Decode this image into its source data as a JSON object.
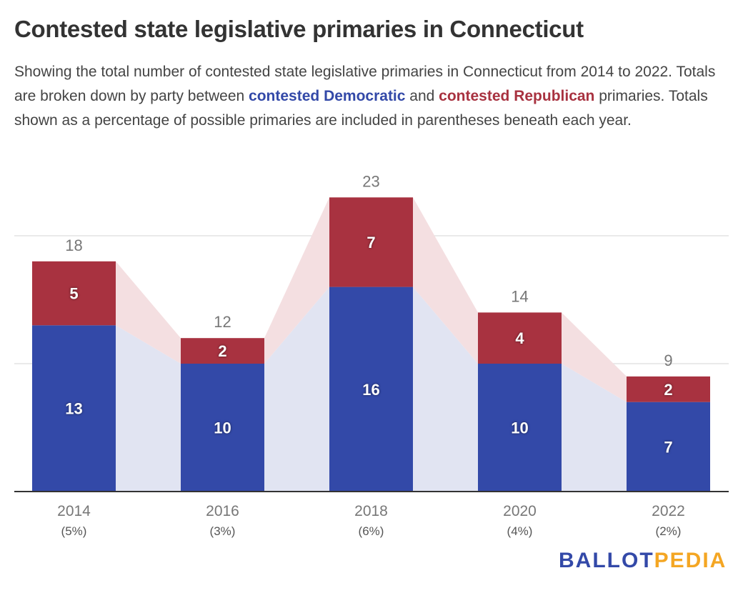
{
  "chart_data": {
    "type": "bar",
    "stacked": true,
    "title": "Contested state legislative primaries in Connecticut",
    "subtitle": {
      "part1": "Showing the total number of contested state legislative primaries in Connecticut from 2014 to 2022. Totals are broken down by party between ",
      "dem_label": "contested Democratic",
      "part2": " and ",
      "rep_label": "contested Republican",
      "part3": " primaries. Totals shown as a percentage of possible primaries are included in parentheses beneath each year."
    },
    "categories": [
      "2014",
      "2016",
      "2018",
      "2020",
      "2022"
    ],
    "category_sublabels": [
      "(5%)",
      "(3%)",
      "(6%)",
      "(4%)",
      "(2%)"
    ],
    "series": [
      {
        "values": [
          13,
          10,
          16,
          10,
          7
        ],
        "color": "#3349a8"
      },
      {
        "values": [
          5,
          2,
          7,
          4,
          2
        ],
        "color": "#a83240"
      }
    ],
    "totals": [
      18,
      12,
      23,
      14,
      9
    ],
    "ylim": [
      0,
      23
    ],
    "gridlines": [
      10,
      20
    ],
    "area_colors": {
      "dem": "#e1e4f2",
      "rep": "#f4dfe1"
    }
  },
  "logo": {
    "part1": "BALLOT",
    "part2": "PEDIA"
  }
}
